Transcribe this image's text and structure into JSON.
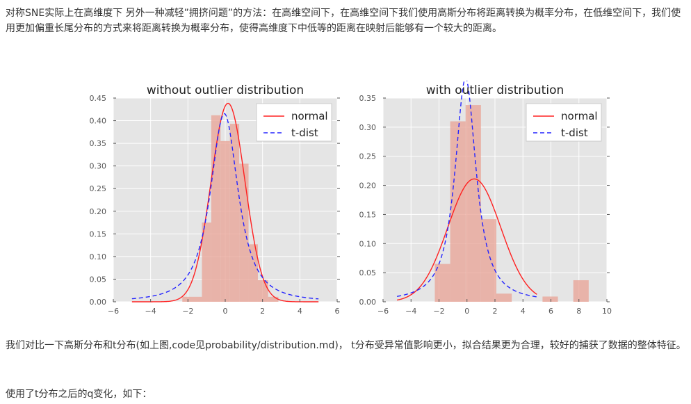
{
  "text": {
    "para1": "对称SNE实际上在高维度下 另外一种减轻”拥挤问题”的方法：在高维空间下，在高维空间下我们使用高斯分布将距离转换为概率分布，在低维空间下，我们使用更加偏重长尾分布的方式来将距离转换为概率分布，使得高维度下中低等的距离在映射后能够有一个较大的距离。",
    "para2": "我们对比一下高斯分布和t分布(如上图,code见probability/distribution.md)， t分布受异常值影响更小，拟合结果更为合理，较好的捕获了数据的整体特征。",
    "para3": "使用了t分布之后的q变化，如下："
  },
  "colors": {
    "plot_bg": "#e5e5e5",
    "grid": "#ffffff",
    "hist": "#e8a294",
    "normal": "#ff2020",
    "tdist": "#2424ff"
  },
  "chart_data": [
    {
      "type": "bar",
      "title": "without outlier distribution",
      "xlim": [
        -6,
        6
      ],
      "ylim": [
        0,
        0.45
      ],
      "xticks": [
        -6,
        -4,
        -2,
        0,
        2,
        4,
        6
      ],
      "xtick_labels": [
        "−6",
        "−4",
        "−2",
        "0",
        "2",
        "4",
        "6"
      ],
      "yticks": [
        0,
        0.05,
        0.1,
        0.15,
        0.2,
        0.25,
        0.3,
        0.35,
        0.4,
        0.45
      ],
      "ytick_labels": [
        "0.00",
        "0.05",
        "0.10",
        "0.15",
        "0.20",
        "0.25",
        "0.30",
        "0.35",
        "0.40",
        "0.45"
      ],
      "hist": {
        "edges": [
          -2.3,
          -1.25,
          -0.75,
          -0.25,
          0.25,
          0.75,
          1.25,
          1.75,
          2.3,
          2.85
        ],
        "heights": [
          0.011,
          0.175,
          0.412,
          0.355,
          0.393,
          0.305,
          0.127,
          0.048,
          0.011
        ]
      },
      "legend": {
        "position": "upper right",
        "entries": [
          "normal",
          "t-dist"
        ]
      },
      "series": [
        {
          "name": "normal",
          "style": "solid",
          "kind": "normal",
          "x_range": [
            -5,
            5
          ],
          "mu": 0.15,
          "sigma": 0.91
        },
        {
          "name": "t-dist",
          "style": "dashed",
          "kind": "t",
          "x_range": [
            -5,
            5
          ],
          "df": 1.64,
          "loc": -0.05,
          "scale": 0.83
        }
      ]
    },
    {
      "type": "bar",
      "title": "with outlier distribution",
      "xlim": [
        -6,
        10
      ],
      "ylim": [
        0,
        0.35
      ],
      "xticks": [
        -6,
        -4,
        -2,
        0,
        2,
        4,
        6,
        8,
        10
      ],
      "xtick_labels": [
        "−6",
        "−4",
        "−2",
        "0",
        "2",
        "4",
        "6",
        "8",
        "10"
      ],
      "yticks": [
        0,
        0.05,
        0.1,
        0.15,
        0.2,
        0.25,
        0.3,
        0.35
      ],
      "ytick_labels": [
        "0.00",
        "0.05",
        "0.10",
        "0.15",
        "0.20",
        "0.25",
        "0.30",
        "0.35"
      ],
      "hist": {
        "edges": [
          -2.3,
          -1.2,
          -0.1,
          1.0,
          2.1,
          3.2,
          4.3,
          5.4,
          6.5,
          7.6,
          8.7
        ],
        "heights": [
          0.065,
          0.31,
          0.338,
          0.142,
          0.014,
          0,
          0,
          0.009,
          0,
          0.037
        ]
      },
      "legend": {
        "position": "upper right",
        "entries": [
          "normal",
          "t-dist"
        ]
      },
      "series": [
        {
          "name": "normal",
          "style": "solid",
          "kind": "normal",
          "x_range": [
            -5,
            5
          ],
          "mu": 0.52,
          "sigma": 1.89
        },
        {
          "name": "t-dist",
          "style": "dashed",
          "kind": "t",
          "x_range": [
            -5,
            5
          ],
          "df": 1.31,
          "loc": -0.1,
          "scale": 0.87
        }
      ]
    }
  ]
}
